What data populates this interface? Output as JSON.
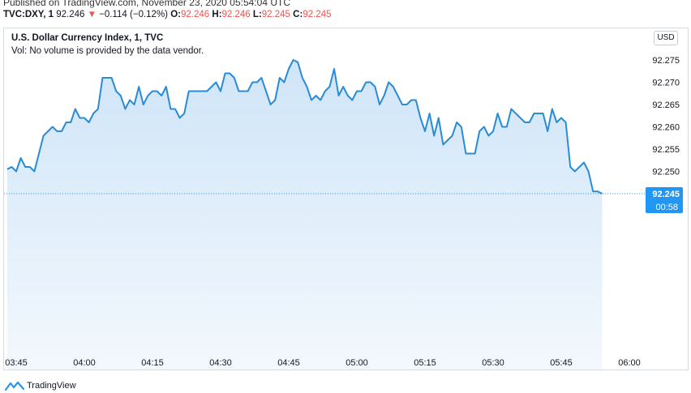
{
  "header": {
    "published": "Published on TradingView.com, November 23, 2020 05:54:04 UTC",
    "symbol": "TVC:DXY, 1",
    "last": "92.246",
    "change_arrow": "▼",
    "change": "−0.114 (−0.12%)",
    "open_label": "O:",
    "open": "92.246",
    "high_label": "H:",
    "high": "92.246",
    "low_label": "L:",
    "low": "92.245",
    "close_label": "C:",
    "close": "92.245"
  },
  "legend": {
    "title": "U.S. Dollar Currency Index, 1, TVC",
    "vol_note": "Vol: No volume is provided by the data vendor."
  },
  "currency_button": "USD",
  "price_badge": {
    "price": "92.245",
    "countdown": "00:58"
  },
  "footer": {
    "brand": "TradingView"
  },
  "colors": {
    "line": "#2a8bd6",
    "fill_top": "#cfe5f8",
    "fill_bottom": "#f3f8fd",
    "badge": "#2196f3",
    "negative": "#ef5350",
    "gridline": "#f0f3fa"
  },
  "icons": {
    "brand": "tradingview-logo-icon"
  },
  "chart_data": {
    "type": "area",
    "title": "U.S. Dollar Currency Index, 1, TVC",
    "xlabel": "",
    "ylabel": "",
    "x_ticks": [
      "03:45",
      "04:00",
      "04:15",
      "04:30",
      "04:45",
      "05:00",
      "05:15",
      "05:30",
      "05:45",
      "06:00"
    ],
    "y_ticks": [
      "92.275",
      "92.270",
      "92.265",
      "92.260",
      "92.255",
      "92.250",
      "92.245"
    ],
    "ylim": [
      92.2435,
      92.2795
    ],
    "grid": false,
    "last_price": 92.245,
    "series": [
      {
        "x": [
          "03:43",
          "03:44",
          "03:45",
          "03:46",
          "03:47",
          "03:48",
          "03:49",
          "03:50",
          "03:51",
          "03:52",
          "03:53",
          "03:54",
          "03:55",
          "03:56",
          "03:57",
          "03:58",
          "03:59",
          "04:00",
          "04:01",
          "04:02",
          "04:03",
          "04:04",
          "04:05",
          "04:06",
          "04:07",
          "04:08",
          "04:09",
          "04:10",
          "04:11",
          "04:12",
          "04:13",
          "04:14",
          "04:15",
          "04:16",
          "04:17",
          "04:18",
          "04:19",
          "04:20",
          "04:21",
          "04:22",
          "04:23",
          "04:24",
          "04:25",
          "04:26",
          "04:27",
          "04:28",
          "04:29",
          "04:30",
          "04:31",
          "04:32",
          "04:33",
          "04:34",
          "04:35",
          "04:36",
          "04:37",
          "04:38",
          "04:39",
          "04:40",
          "04:41",
          "04:42",
          "04:43",
          "04:44",
          "04:45",
          "04:46",
          "04:47",
          "04:48",
          "04:49",
          "04:50",
          "04:51",
          "04:52",
          "04:53",
          "04:54",
          "04:55",
          "04:56",
          "04:57",
          "04:58",
          "04:59",
          "05:00",
          "05:01",
          "05:02",
          "05:03",
          "05:04",
          "05:05",
          "05:06",
          "05:07",
          "05:08",
          "05:09",
          "05:10",
          "05:11",
          "05:12",
          "05:13",
          "05:14",
          "05:15",
          "05:16",
          "05:17",
          "05:18",
          "05:19",
          "05:20",
          "05:21",
          "05:22",
          "05:23",
          "05:24",
          "05:25",
          "05:26",
          "05:27",
          "05:28",
          "05:29",
          "05:30",
          "05:31",
          "05:32",
          "05:33",
          "05:34",
          "05:35",
          "05:36",
          "05:37",
          "05:38",
          "05:39",
          "05:40",
          "05:41",
          "05:42",
          "05:43",
          "05:44",
          "05:45",
          "05:46",
          "05:47",
          "05:48",
          "05:49",
          "05:50",
          "05:51",
          "05:52",
          "05:53",
          "05:54"
        ],
        "values": [
          92.2505,
          92.251,
          92.25,
          92.253,
          92.251,
          92.251,
          92.25,
          92.254,
          92.258,
          92.259,
          92.26,
          92.259,
          92.259,
          92.261,
          92.261,
          92.264,
          92.262,
          92.262,
          92.261,
          92.263,
          92.264,
          92.271,
          92.271,
          92.271,
          92.268,
          92.267,
          92.264,
          92.266,
          92.265,
          92.269,
          92.265,
          92.267,
          92.268,
          92.268,
          92.267,
          92.269,
          92.264,
          92.264,
          92.262,
          92.263,
          92.268,
          92.268,
          92.268,
          92.268,
          92.268,
          92.269,
          92.27,
          92.268,
          92.272,
          92.272,
          92.271,
          92.268,
          92.268,
          92.268,
          92.27,
          92.27,
          92.271,
          92.268,
          92.265,
          92.266,
          92.271,
          92.27,
          92.273,
          92.275,
          92.2745,
          92.271,
          92.269,
          92.266,
          92.267,
          92.266,
          92.268,
          92.269,
          92.273,
          92.267,
          92.269,
          92.267,
          92.266,
          92.268,
          92.268,
          92.27,
          92.27,
          92.269,
          92.265,
          92.267,
          92.27,
          92.269,
          92.267,
          92.265,
          92.265,
          92.266,
          92.266,
          92.262,
          92.259,
          92.263,
          92.258,
          92.262,
          92.256,
          92.257,
          92.258,
          92.261,
          92.26,
          92.254,
          92.254,
          92.254,
          92.259,
          92.26,
          92.258,
          92.259,
          92.263,
          92.26,
          92.26,
          92.264,
          92.263,
          92.262,
          92.261,
          92.261,
          92.263,
          92.263,
          92.263,
          92.259,
          92.264,
          92.261,
          92.262,
          92.261,
          92.251,
          92.25,
          92.251,
          92.252,
          92.25,
          92.2455,
          92.2455,
          92.245
        ]
      }
    ]
  }
}
